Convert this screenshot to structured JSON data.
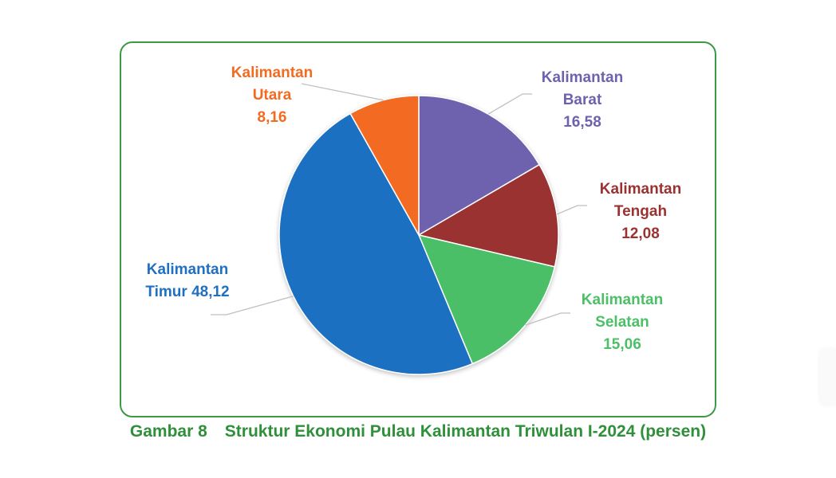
{
  "caption": {
    "number": "Gambar 8",
    "title": "Struktur Ekonomi Pulau Kalimantan Triwulan I-2024 (persen)"
  },
  "chart_data": {
    "type": "pie",
    "title": "",
    "start_angle_deg": 0,
    "direction": "clockwise",
    "slices": [
      {
        "label_lines": [
          "Kalimantan",
          "Barat",
          "16,58"
        ],
        "value": 16.58,
        "color": "#6e62ae",
        "label_color": "#6e62ae"
      },
      {
        "label_lines": [
          "Kalimantan",
          "Tengah",
          "12,08"
        ],
        "value": 12.08,
        "color": "#9b3231",
        "label_color": "#9b3231"
      },
      {
        "label_lines": [
          "Kalimantan",
          "Selatan",
          "15,06"
        ],
        "value": 15.06,
        "color": "#4cbf67",
        "label_color": "#4cbf67"
      },
      {
        "label_lines": [
          "Kalimantan",
          "Timur 48,12"
        ],
        "value": 48.12,
        "color": "#1f70c1",
        "label_color": "#1f70c1"
      },
      {
        "label_lines": [
          "Kalimantan",
          "Utara",
          "8,16"
        ],
        "value": 8.16,
        "color": "#f36b21",
        "label_color": "#f36b21"
      }
    ]
  }
}
